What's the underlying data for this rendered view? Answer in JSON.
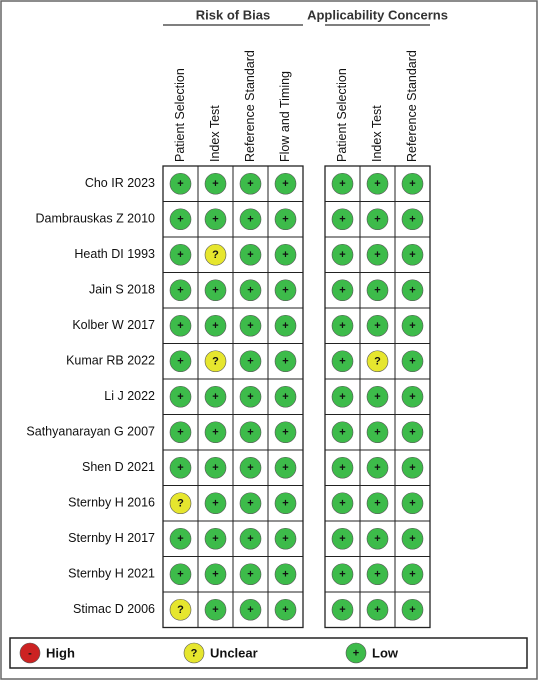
{
  "header": {
    "groups": [
      {
        "title": "Risk of Bias",
        "columns": [
          "Patient Selection",
          "Index Test",
          "Reference Standard",
          "Flow and Timing"
        ]
      },
      {
        "title": "Applicability Concerns",
        "columns": [
          "Patient Selection",
          "Index Test",
          "Reference Standard"
        ]
      }
    ]
  },
  "rows": [
    {
      "study": "Cho IR 2023",
      "judgments": [
        [
          "+",
          "+",
          "+",
          "+"
        ],
        [
          "+",
          "+",
          "+"
        ]
      ]
    },
    {
      "study": "Dambrauskas Z 2010",
      "judgments": [
        [
          "+",
          "+",
          "+",
          "+"
        ],
        [
          "+",
          "+",
          "+"
        ]
      ]
    },
    {
      "study": "Heath DI 1993",
      "judgments": [
        [
          "+",
          "?",
          "+",
          "+"
        ],
        [
          "+",
          "+",
          "+"
        ]
      ]
    },
    {
      "study": "Jain S 2018",
      "judgments": [
        [
          "+",
          "+",
          "+",
          "+"
        ],
        [
          "+",
          "+",
          "+"
        ]
      ]
    },
    {
      "study": "Kolber W 2017",
      "judgments": [
        [
          "+",
          "+",
          "+",
          "+"
        ],
        [
          "+",
          "+",
          "+"
        ]
      ]
    },
    {
      "study": "Kumar RB 2022",
      "judgments": [
        [
          "+",
          "?",
          "+",
          "+"
        ],
        [
          "+",
          "?",
          "+"
        ]
      ]
    },
    {
      "study": "Li J 2022",
      "judgments": [
        [
          "+",
          "+",
          "+",
          "+"
        ],
        [
          "+",
          "+",
          "+"
        ]
      ]
    },
    {
      "study": "Sathyanarayan G 2007",
      "judgments": [
        [
          "+",
          "+",
          "+",
          "+"
        ],
        [
          "+",
          "+",
          "+"
        ]
      ]
    },
    {
      "study": "Shen D 2021",
      "judgments": [
        [
          "+",
          "+",
          "+",
          "+"
        ],
        [
          "+",
          "+",
          "+"
        ]
      ]
    },
    {
      "study": "Sternby H 2016",
      "judgments": [
        [
          "?",
          "+",
          "+",
          "+"
        ],
        [
          "+",
          "+",
          "+"
        ]
      ]
    },
    {
      "study": "Sternby H 2017",
      "judgments": [
        [
          "+",
          "+",
          "+",
          "+"
        ],
        [
          "+",
          "+",
          "+"
        ]
      ]
    },
    {
      "study": "Sternby H 2021",
      "judgments": [
        [
          "+",
          "+",
          "+",
          "+"
        ],
        [
          "+",
          "+",
          "+"
        ]
      ]
    },
    {
      "study": "Stimac D 2006",
      "judgments": [
        [
          "?",
          "+",
          "+",
          "+"
        ],
        [
          "+",
          "+",
          "+"
        ]
      ]
    }
  ],
  "legend": [
    {
      "symbol": "-",
      "label": "High",
      "color": "#cc2222"
    },
    {
      "symbol": "?",
      "label": "Unclear",
      "color": "#e6e62e"
    },
    {
      "symbol": "+",
      "label": "Low",
      "color": "#3dbb4a"
    }
  ]
}
